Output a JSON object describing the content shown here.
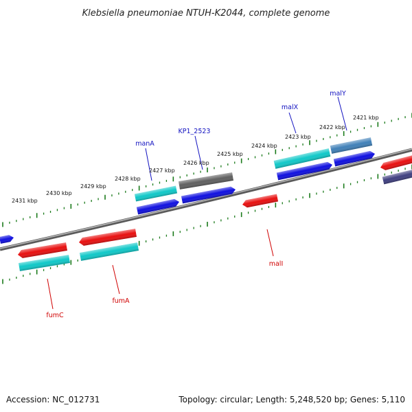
{
  "title": "Klebsiella pneumoniae NTUH-K2044, complete genome",
  "footer": {
    "accession": "Accession: NC_012731",
    "topology": "Topology: circular; Length: 5,248,520 bp; Genes: 5,110"
  },
  "colors": {
    "backbone": "#808080",
    "ticks": "#1a7a1a",
    "forward_label": "#1010c0",
    "reverse_label": "#d00000",
    "red": "#e81010",
    "blue": "#1010e0",
    "cyan": "#10c8c8",
    "gray": "#606060",
    "steel": "#4080b8",
    "navy": "#404080"
  },
  "kbp_labels": [
    {
      "text": "2431 kbp"
    },
    {
      "text": "2430 kbp"
    },
    {
      "text": "2429 kbp"
    },
    {
      "text": "2428 kbp"
    },
    {
      "text": "2427 kbp"
    },
    {
      "text": "2426 kbp"
    },
    {
      "text": "2425 kbp"
    },
    {
      "text": "2424 kbp"
    },
    {
      "text": "2423 kbp"
    },
    {
      "text": "2422 kbp"
    },
    {
      "text": "2421 kbp"
    }
  ],
  "gene_labels": [
    {
      "text": "manA",
      "strand": "forward"
    },
    {
      "text": "KP1_2523",
      "strand": "forward"
    },
    {
      "text": "malX",
      "strand": "forward"
    },
    {
      "text": "malY",
      "strand": "forward"
    },
    {
      "text": "fumC",
      "strand": "reverse"
    },
    {
      "text": "fumA",
      "strand": "reverse"
    },
    {
      "text": "malI",
      "strand": "reverse"
    }
  ]
}
